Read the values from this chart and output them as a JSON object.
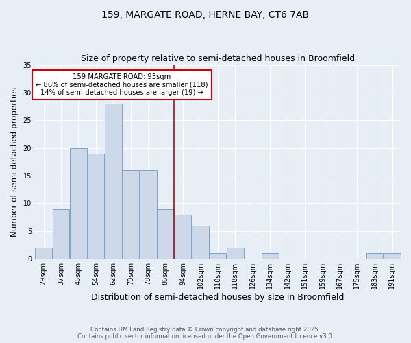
{
  "title1": "159, MARGATE ROAD, HERNE BAY, CT6 7AB",
  "title2": "Size of property relative to semi-detached houses in Broomfield",
  "xlabel": "Distribution of semi-detached houses by size in Broomfield",
  "ylabel": "Number of semi-detached properties",
  "bin_labels": [
    "29sqm",
    "37sqm",
    "45sqm",
    "54sqm",
    "62sqm",
    "70sqm",
    "78sqm",
    "86sqm",
    "94sqm",
    "102sqm",
    "110sqm",
    "118sqm",
    "126sqm",
    "134sqm",
    "142sqm",
    "151sqm",
    "159sqm",
    "167sqm",
    "175sqm",
    "183sqm",
    "191sqm"
  ],
  "bar_heights": [
    2,
    9,
    20,
    19,
    28,
    16,
    16,
    9,
    8,
    6,
    1,
    2,
    0,
    1,
    0,
    0,
    0,
    0,
    0,
    1,
    1
  ],
  "bar_color": "#cdd9e8",
  "bar_edge_color": "#7aa4c8",
  "property_line_bin_idx": 8,
  "property_label": "159 MARGATE ROAD: 93sqm",
  "pct_smaller": "86% of semi-detached houses are smaller (118)",
  "pct_larger": "14% of semi-detached houses are larger (19)",
  "annotation_box_color": "#ffffff",
  "annotation_box_edge": "#cc0000",
  "vline_color": "#cc0000",
  "ylim": [
    0,
    35
  ],
  "yticks": [
    0,
    5,
    10,
    15,
    20,
    25,
    30,
    35
  ],
  "footer1": "Contains HM Land Registry data © Crown copyright and database right 2025.",
  "footer2": "Contains public sector information licensed under the Open Government Licence v3.0.",
  "bg_color": "#e8eef5",
  "plot_bg_color": "#e8eef5",
  "bin_width": 1
}
